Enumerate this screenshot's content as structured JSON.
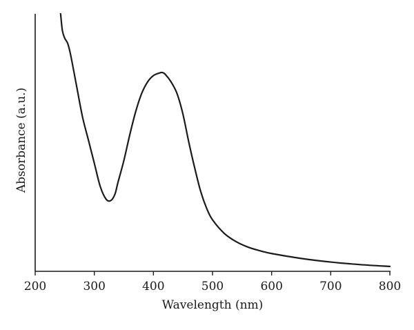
{
  "chart_data": {
    "type": "line",
    "xlabel": "Wavelength (nm)",
    "ylabel": "Absorbance (a.u.)",
    "xlim": [
      200,
      800
    ],
    "ylim": [
      0,
      1
    ],
    "xticks": [
      200,
      300,
      400,
      500,
      600,
      700,
      800
    ],
    "x_tick_labels": [
      "200",
      "300",
      "400",
      "500",
      "600",
      "700",
      "800"
    ],
    "y_tick_labels": [],
    "grid": false,
    "legend": "none",
    "series": [
      {
        "x": [
          243,
          246,
          250,
          255,
          260,
          270,
          280,
          290,
          300,
          310,
          320,
          328,
          335,
          340,
          350,
          360,
          370,
          380,
          390,
          400,
          410,
          415,
          420,
          430,
          440,
          450,
          460,
          470,
          480,
          490,
          500,
          520,
          540,
          560,
          580,
          600,
          650,
          700,
          750,
          800
        ],
        "values": [
          1.0,
          0.935,
          0.905,
          0.885,
          0.84,
          0.72,
          0.6,
          0.51,
          0.42,
          0.33,
          0.28,
          0.275,
          0.3,
          0.345,
          0.43,
          0.53,
          0.62,
          0.69,
          0.735,
          0.76,
          0.77,
          0.772,
          0.765,
          0.735,
          0.69,
          0.61,
          0.5,
          0.4,
          0.31,
          0.245,
          0.2,
          0.147,
          0.115,
          0.094,
          0.08,
          0.069,
          0.05,
          0.036,
          0.026,
          0.019
        ]
      }
    ]
  }
}
